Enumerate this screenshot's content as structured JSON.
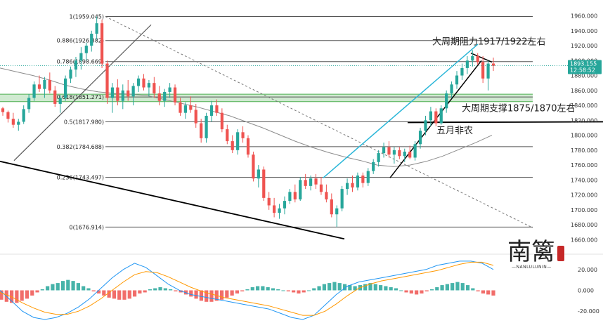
{
  "chart_data": [
    {
      "type": "candlestick",
      "title": "",
      "ylim": [
        1650,
        1968
      ],
      "y_ticks": [
        "1960.000",
        "1940.000",
        "1920.000",
        "1900.000",
        "1880.000",
        "1860.000",
        "1840.000",
        "1820.000",
        "1800.000",
        "1780.000",
        "1760.000",
        "1740.000",
        "1720.000",
        "1700.000",
        "1680.000",
        "1660.000"
      ],
      "fib_levels": [
        {
          "label": "1(1959.045)",
          "value": 1959.045
        },
        {
          "label": "0.886(1926.882)",
          "value": 1926.882
        },
        {
          "label": "0.786(1898.669)",
          "value": 1898.669
        },
        {
          "label": "0.618(1851.271)",
          "value": 1851.271
        },
        {
          "label": "0.5(1817.980)",
          "value": 1817.98
        },
        {
          "label": "0.382(1784.688)",
          "value": 1784.688
        },
        {
          "label": "0.236(1743.497)",
          "value": 1743.497
        },
        {
          "label": "0(1676.914)",
          "value": 1676.914
        }
      ],
      "support_zone": [
        1845,
        1855
      ],
      "current_price": {
        "value": "1893.155",
        "time": "12:58:52"
      },
      "annotations": [
        {
          "text": "大周期阻力1917/1922左右",
          "price": 1925
        },
        {
          "text": "大周期支撑1875/1870左右",
          "price": 1836
        },
        {
          "text": "五月非农",
          "price": 1806
        }
      ],
      "colors": {
        "up": "#26a69a",
        "down": "#ef5350",
        "ma": "#8c8c8c",
        "channel": "#29b6d8",
        "zone": "#c8e6c9"
      },
      "moving_average": [
        1890,
        1885,
        1880,
        1874,
        1867,
        1862,
        1858,
        1856,
        1855,
        1853,
        1848,
        1843,
        1838,
        1832,
        1826,
        1818,
        1810,
        1801,
        1792,
        1784,
        1777,
        1771,
        1766,
        1760,
        1758,
        1760,
        1765,
        1772,
        1781,
        1790,
        1800
      ],
      "candles": [
        [
          1836,
          1838,
          1826,
          1831
        ],
        [
          1831,
          1833,
          1817,
          1822
        ],
        [
          1822,
          1830,
          1810,
          1814
        ],
        [
          1814,
          1822,
          1806,
          1818
        ],
        [
          1818,
          1840,
          1815,
          1835
        ],
        [
          1835,
          1855,
          1830,
          1850
        ],
        [
          1850,
          1872,
          1846,
          1868
        ],
        [
          1868,
          1880,
          1858,
          1862
        ],
        [
          1862,
          1878,
          1850,
          1874
        ],
        [
          1874,
          1884,
          1856,
          1860
        ],
        [
          1860,
          1866,
          1838,
          1842
        ],
        [
          1842,
          1854,
          1830,
          1850
        ],
        [
          1850,
          1880,
          1846,
          1876
        ],
        [
          1876,
          1892,
          1870,
          1888
        ],
        [
          1888,
          1905,
          1878,
          1900
        ],
        [
          1900,
          1918,
          1888,
          1910
        ],
        [
          1910,
          1924,
          1900,
          1920
        ],
        [
          1920,
          1940,
          1912,
          1936
        ],
        [
          1936,
          1959,
          1928,
          1950
        ],
        [
          1950,
          1955,
          1890,
          1896
        ],
        [
          1896,
          1900,
          1842,
          1850
        ],
        [
          1850,
          1870,
          1830,
          1864
        ],
        [
          1864,
          1875,
          1840,
          1846
        ],
        [
          1846,
          1868,
          1835,
          1860
        ],
        [
          1860,
          1874,
          1846,
          1852
        ],
        [
          1852,
          1870,
          1840,
          1866
        ],
        [
          1866,
          1880,
          1858,
          1876
        ],
        [
          1876,
          1882,
          1860,
          1864
        ],
        [
          1864,
          1874,
          1852,
          1870
        ],
        [
          1870,
          1878,
          1850,
          1856
        ],
        [
          1856,
          1866,
          1840,
          1846
        ],
        [
          1846,
          1862,
          1838,
          1858
        ],
        [
          1858,
          1870,
          1850,
          1864
        ],
        [
          1864,
          1868,
          1840,
          1844
        ],
        [
          1844,
          1850,
          1826,
          1830
        ],
        [
          1830,
          1844,
          1822,
          1840
        ],
        [
          1840,
          1852,
          1830,
          1834
        ],
        [
          1834,
          1842,
          1810,
          1816
        ],
        [
          1816,
          1822,
          1790,
          1796
        ],
        [
          1796,
          1830,
          1790,
          1826
        ],
        [
          1826,
          1846,
          1818,
          1840
        ],
        [
          1840,
          1848,
          1826,
          1830
        ],
        [
          1830,
          1836,
          1804,
          1808
        ],
        [
          1808,
          1814,
          1788,
          1792
        ],
        [
          1792,
          1800,
          1776,
          1780
        ],
        [
          1780,
          1808,
          1774,
          1804
        ],
        [
          1804,
          1812,
          1790,
          1796
        ],
        [
          1796,
          1800,
          1770,
          1774
        ],
        [
          1774,
          1778,
          1738,
          1742
        ],
        [
          1742,
          1760,
          1730,
          1754
        ],
        [
          1754,
          1758,
          1712,
          1716
        ],
        [
          1716,
          1724,
          1700,
          1706
        ],
        [
          1706,
          1716,
          1690,
          1696
        ],
        [
          1696,
          1708,
          1688,
          1702
        ],
        [
          1702,
          1718,
          1694,
          1712
        ],
        [
          1712,
          1728,
          1708,
          1724
        ],
        [
          1724,
          1734,
          1710,
          1714
        ],
        [
          1714,
          1744,
          1712,
          1740
        ],
        [
          1740,
          1748,
          1728,
          1732
        ],
        [
          1732,
          1746,
          1726,
          1742
        ],
        [
          1742,
          1748,
          1728,
          1734
        ],
        [
          1734,
          1744,
          1720,
          1724
        ],
        [
          1724,
          1734,
          1710,
          1714
        ],
        [
          1714,
          1722,
          1690,
          1694
        ],
        [
          1694,
          1706,
          1677,
          1702
        ],
        [
          1702,
          1732,
          1698,
          1728
        ],
        [
          1728,
          1742,
          1720,
          1736
        ],
        [
          1736,
          1746,
          1724,
          1730
        ],
        [
          1730,
          1750,
          1726,
          1746
        ],
        [
          1746,
          1750,
          1730,
          1736
        ],
        [
          1736,
          1756,
          1732,
          1752
        ],
        [
          1752,
          1768,
          1748,
          1764
        ],
        [
          1764,
          1780,
          1758,
          1776
        ],
        [
          1776,
          1790,
          1770,
          1784
        ],
        [
          1784,
          1792,
          1770,
          1774
        ],
        [
          1774,
          1784,
          1762,
          1780
        ],
        [
          1780,
          1784,
          1768,
          1772
        ],
        [
          1772,
          1782,
          1764,
          1778
        ],
        [
          1778,
          1786,
          1768,
          1770
        ],
        [
          1770,
          1792,
          1766,
          1788
        ],
        [
          1788,
          1810,
          1782,
          1806
        ],
        [
          1806,
          1826,
          1800,
          1820
        ],
        [
          1820,
          1838,
          1812,
          1832
        ],
        [
          1832,
          1836,
          1812,
          1816
        ],
        [
          1816,
          1840,
          1814,
          1836
        ],
        [
          1836,
          1860,
          1830,
          1856
        ],
        [
          1856,
          1872,
          1850,
          1868
        ],
        [
          1868,
          1886,
          1862,
          1880
        ],
        [
          1880,
          1896,
          1874,
          1890
        ],
        [
          1890,
          1906,
          1882,
          1900
        ],
        [
          1900,
          1914,
          1892,
          1906
        ],
        [
          1906,
          1910,
          1894,
          1898
        ],
        [
          1898,
          1906,
          1870,
          1876
        ],
        [
          1876,
          1900,
          1860,
          1896
        ],
        [
          1896,
          1904,
          1886,
          1893
        ]
      ]
    },
    {
      "type": "macd",
      "ylim": [
        -30,
        32
      ],
      "y_ticks": [
        "20.000",
        "0.000",
        "-20.000"
      ],
      "histogram": [
        -9,
        -11,
        -12,
        -12,
        -10,
        -8,
        -5,
        -2,
        1,
        4,
        6,
        7,
        9,
        10,
        9,
        7,
        4,
        2,
        -1,
        -3,
        -5,
        -7,
        -8,
        -9,
        -9,
        -8,
        -6,
        -3,
        -2,
        1,
        2,
        3,
        2,
        1,
        -1,
        -2,
        -4,
        -6,
        -8,
        -10,
        -11,
        -11,
        -10,
        -9,
        -7,
        -5,
        -3,
        -1,
        1,
        3,
        4,
        4,
        3,
        2,
        1,
        0,
        -1,
        -2,
        -3,
        -2,
        0,
        2,
        4,
        6,
        7,
        8,
        7,
        6,
        5,
        4,
        5,
        6,
        7,
        6,
        5,
        4,
        3,
        2,
        0,
        -2,
        -3,
        -4,
        -3,
        -1,
        1,
        3,
        5,
        6,
        7,
        8,
        7,
        5,
        2,
        -1,
        -3,
        -4,
        -5
      ],
      "macd_line": [
        0,
        -10,
        -20,
        -26,
        -28,
        -26,
        -22,
        -16,
        -8,
        2,
        12,
        20,
        26,
        22,
        14,
        6,
        0,
        -4,
        -6,
        -8,
        -10,
        -12,
        -14,
        -16,
        -18,
        -22,
        -26,
        -28,
        -24,
        -14,
        -4,
        4,
        8,
        10,
        12,
        14,
        16,
        18,
        20,
        24,
        26,
        28,
        28,
        26,
        20
      ],
      "signal_line": [
        -2,
        -6,
        -12,
        -17,
        -21,
        -23,
        -23,
        -20,
        -15,
        -8,
        0,
        8,
        15,
        18,
        17,
        13,
        8,
        3,
        -1,
        -4,
        -7,
        -9,
        -11,
        -13,
        -15,
        -18,
        -21,
        -24,
        -24,
        -20,
        -13,
        -5,
        2,
        6,
        9,
        11,
        13,
        15,
        17,
        19,
        22,
        25,
        27,
        27,
        24
      ],
      "colors": {
        "macd": "#2196f3",
        "signal": "#ff9800",
        "hist_up": "#26a69a",
        "hist_down": "#ef5350"
      }
    }
  ],
  "logo": {
    "text": "南篱",
    "subtitle": "—NANLULUNIN—"
  }
}
